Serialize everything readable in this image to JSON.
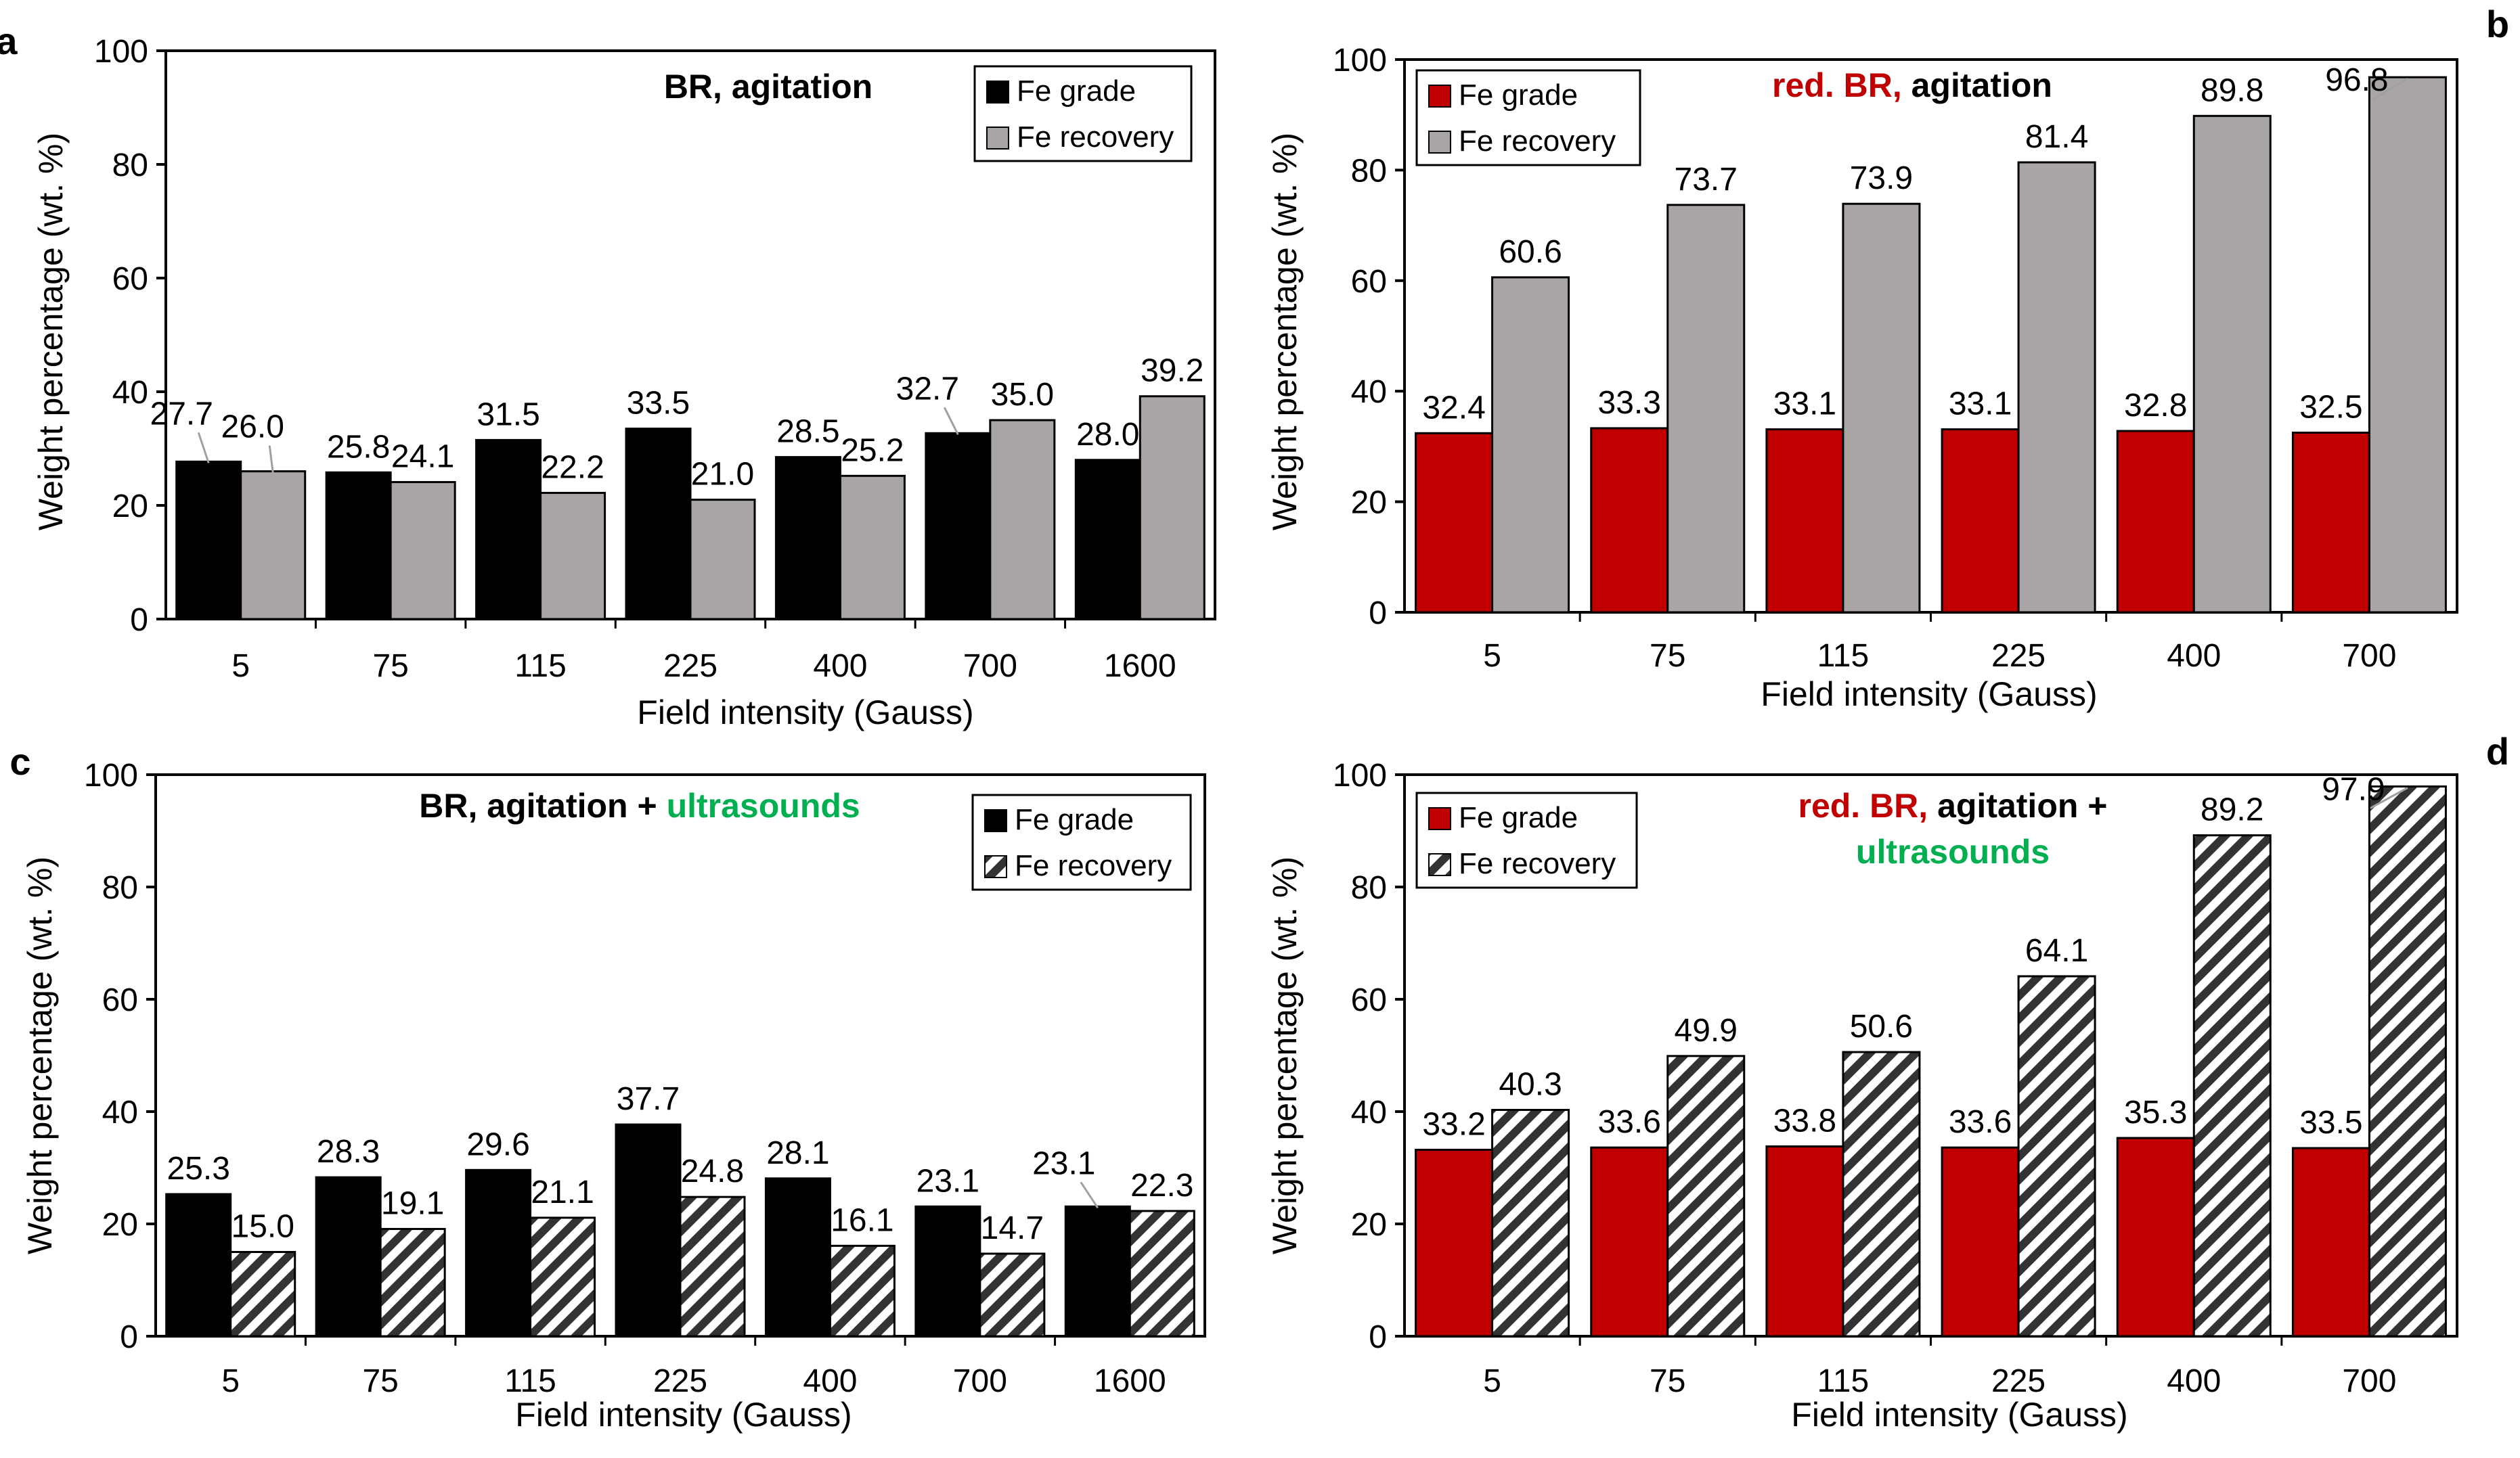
{
  "colors": {
    "grade_black": "#000000",
    "grade_red": "#C00000",
    "recovery_gray": "#A9A5A5",
    "title_red": "#C00000",
    "title_green": "#00B050",
    "axis": "#000000"
  },
  "chart_data": [
    {
      "panel": "a",
      "type": "bar",
      "title_parts": [
        {
          "text": "BR, agitation",
          "color": "black"
        }
      ],
      "xlabel": "Field intensity (Gauss)",
      "ylabel": "Weight percentage (wt. %)",
      "ylim": [
        0,
        100
      ],
      "yticks": [
        0,
        20,
        40,
        60,
        80,
        100
      ],
      "categories": [
        "5",
        "75",
        "115",
        "225",
        "400",
        "700",
        "1600"
      ],
      "series": [
        {
          "name": "Fe grade",
          "style": "black",
          "values": [
            27.7,
            25.8,
            31.5,
            33.5,
            28.5,
            32.7,
            28.0
          ],
          "labels": [
            "27.7",
            "25.8",
            "31.5",
            "33.5",
            "28.5",
            "32.7",
            "28.0"
          ]
        },
        {
          "name": "Fe recovery",
          "style": "gray",
          "values": [
            26.0,
            24.1,
            22.2,
            21.0,
            25.2,
            35.0,
            39.2
          ],
          "labels": [
            "26.0",
            "24.1",
            "22.2",
            "21.0",
            "25.2",
            "35.0",
            "39.2"
          ]
        }
      ],
      "legend": "top-right"
    },
    {
      "panel": "b",
      "type": "bar",
      "title_parts": [
        {
          "text": "red. BR,",
          "color": "red"
        },
        {
          "text": " agitation",
          "color": "black"
        }
      ],
      "xlabel": "Field intensity (Gauss)",
      "ylabel": "Weight percentage (wt. %)",
      "ylim": [
        0,
        100
      ],
      "yticks": [
        0,
        20,
        40,
        60,
        80,
        100
      ],
      "categories": [
        "5",
        "75",
        "115",
        "225",
        "400",
        "700"
      ],
      "series": [
        {
          "name": "Fe grade",
          "style": "red",
          "values": [
            32.4,
            33.3,
            33.1,
            33.1,
            32.8,
            32.5
          ],
          "labels": [
            "32.4",
            "33.3",
            "33.1",
            "33.1",
            "32.8",
            "32.5"
          ]
        },
        {
          "name": "Fe recovery",
          "style": "gray",
          "values": [
            60.6,
            73.7,
            73.9,
            81.4,
            89.8,
            96.8
          ],
          "labels": [
            "60.6",
            "73.7",
            "73.9",
            "81.4",
            "89.8",
            "96.8"
          ]
        }
      ],
      "legend": "top-left"
    },
    {
      "panel": "c",
      "type": "bar",
      "title_parts": [
        {
          "text": "BR, agitation + ",
          "color": "black"
        },
        {
          "text": "ultrasounds",
          "color": "green"
        }
      ],
      "xlabel": "Field intensity (Gauss)",
      "ylabel": "Weight percentage (wt. %)",
      "ylim": [
        0,
        100
      ],
      "yticks": [
        0,
        20,
        40,
        60,
        80,
        100
      ],
      "categories": [
        "5",
        "75",
        "115",
        "225",
        "400",
        "700",
        "1600"
      ],
      "series": [
        {
          "name": "Fe grade",
          "style": "black",
          "values": [
            25.3,
            28.3,
            29.6,
            37.7,
            28.1,
            23.1,
            23.1
          ],
          "labels": [
            "25.3",
            "28.3",
            "29.6",
            "37.7",
            "28.1",
            "23.1",
            "23.1"
          ]
        },
        {
          "name": "Fe recovery",
          "style": "hatch",
          "values": [
            15.0,
            19.1,
            21.1,
            24.8,
            16.1,
            14.7,
            22.3
          ],
          "labels": [
            "15.0",
            "19.1",
            "21.1",
            "24.8",
            "16.1",
            "14.7",
            "22.3"
          ]
        }
      ],
      "legend": "top-right"
    },
    {
      "panel": "d",
      "type": "bar",
      "title_parts": [
        {
          "text": "red. BR,",
          "color": "red"
        },
        {
          "text": " agitation +",
          "color": "black"
        }
      ],
      "title_line2_parts": [
        {
          "text": "ultrasounds",
          "color": "green"
        }
      ],
      "xlabel": "Field intensity (Gauss)",
      "ylabel": "Weight percentage (wt. %)",
      "ylim": [
        0,
        100
      ],
      "yticks": [
        0,
        20,
        40,
        60,
        80,
        100
      ],
      "categories": [
        "5",
        "75",
        "115",
        "225",
        "400",
        "700"
      ],
      "series": [
        {
          "name": "Fe grade",
          "style": "red",
          "values": [
            33.2,
            33.6,
            33.8,
            33.6,
            35.3,
            33.5
          ],
          "labels": [
            "33.2",
            "33.6",
            "33.8",
            "33.6",
            "35.3",
            "33.5"
          ]
        },
        {
          "name": "Fe recovery",
          "style": "hatch",
          "values": [
            40.3,
            49.9,
            50.6,
            64.1,
            89.2,
            97.9
          ],
          "labels": [
            "40.3",
            "49.9",
            "50.6",
            "64.1",
            "89.2",
            "97.9"
          ]
        }
      ],
      "legend": "top-left"
    }
  ]
}
